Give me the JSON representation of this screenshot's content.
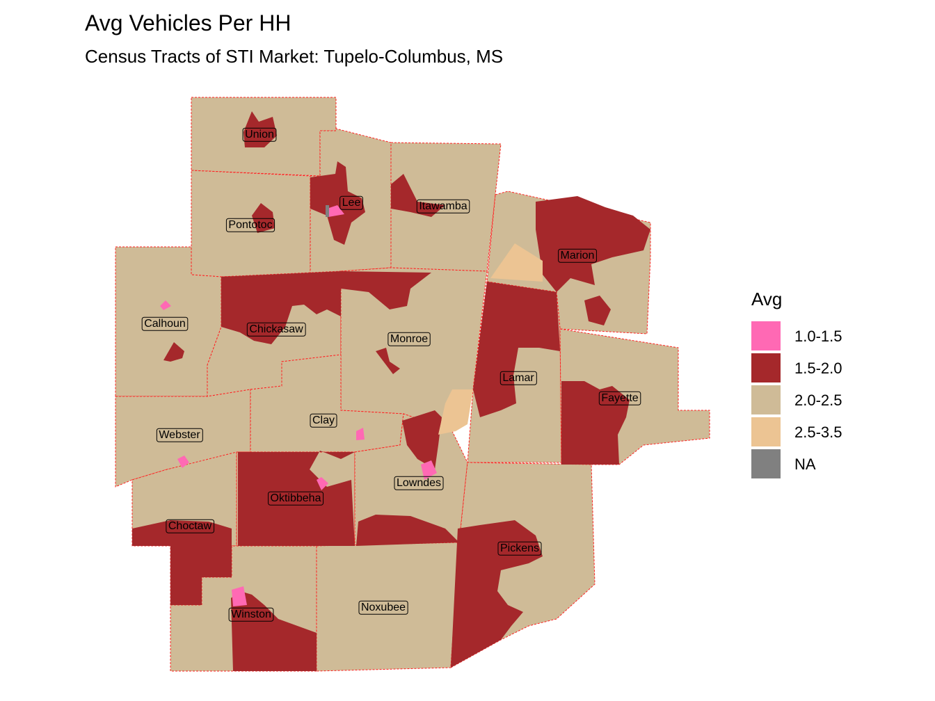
{
  "title": "Avg Vehicles Per HH",
  "subtitle": "Census Tracts of STI Market: Tupelo-Columbus, MS",
  "legend": {
    "title": "Avg",
    "items": [
      {
        "label": "1.0-1.5",
        "color": "#ff69b4"
      },
      {
        "label": "1.5-2.0",
        "color": "#a5282b"
      },
      {
        "label": "2.0-2.5",
        "color": "#cfbb97"
      },
      {
        "label": "2.5-3.5",
        "color": "#ecc493"
      },
      {
        "label": "NA",
        "color": "#808080"
      }
    ]
  },
  "counties": [
    "Union",
    "Lee",
    "Itawamba",
    "Pontotoc",
    "Marion",
    "Calhoun",
    "Chickasaw",
    "Monroe",
    "Lamar",
    "Fayette",
    "Clay",
    "Webster",
    "Lowndes",
    "Oktibbeha",
    "Choctaw",
    "Pickens",
    "Winston",
    "Noxubee"
  ]
}
